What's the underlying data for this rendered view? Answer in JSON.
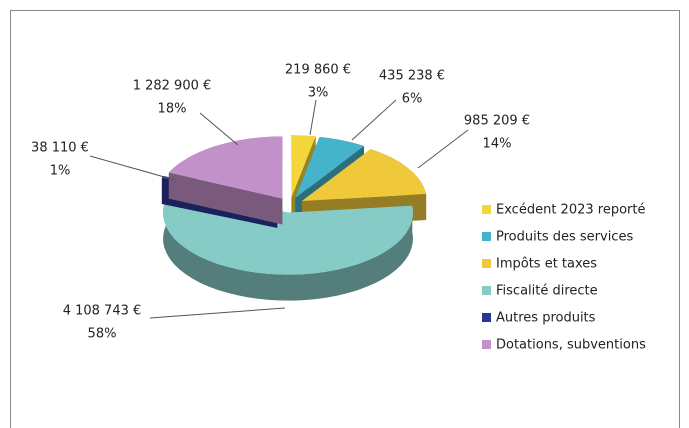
{
  "chart_data": {
    "type": "pie",
    "categories": [
      "Excédent 2023 reporté",
      "Produits des services",
      "Impôts et taxes",
      "Fiscalité directe",
      "Autres produits",
      "Dotations, subventions"
    ],
    "values": [
      219860,
      435238,
      985209,
      4108743,
      38110,
      1282900
    ],
    "value_labels": [
      "219 860 €",
      "435 238 €",
      "985 209 €",
      "4 108 743 €",
      "38 110 €",
      "1 282 900 €"
    ],
    "percentages": [
      3,
      6,
      14,
      58,
      1,
      18
    ],
    "percentage_labels": [
      "3%",
      "6%",
      "14%",
      "58%",
      "1%",
      "18%"
    ],
    "colors": [
      "#f4d63a",
      "#45b3c9",
      "#efc93a",
      "#86cbc6",
      "#2b3596",
      "#c391c9"
    ],
    "legend": "right"
  }
}
